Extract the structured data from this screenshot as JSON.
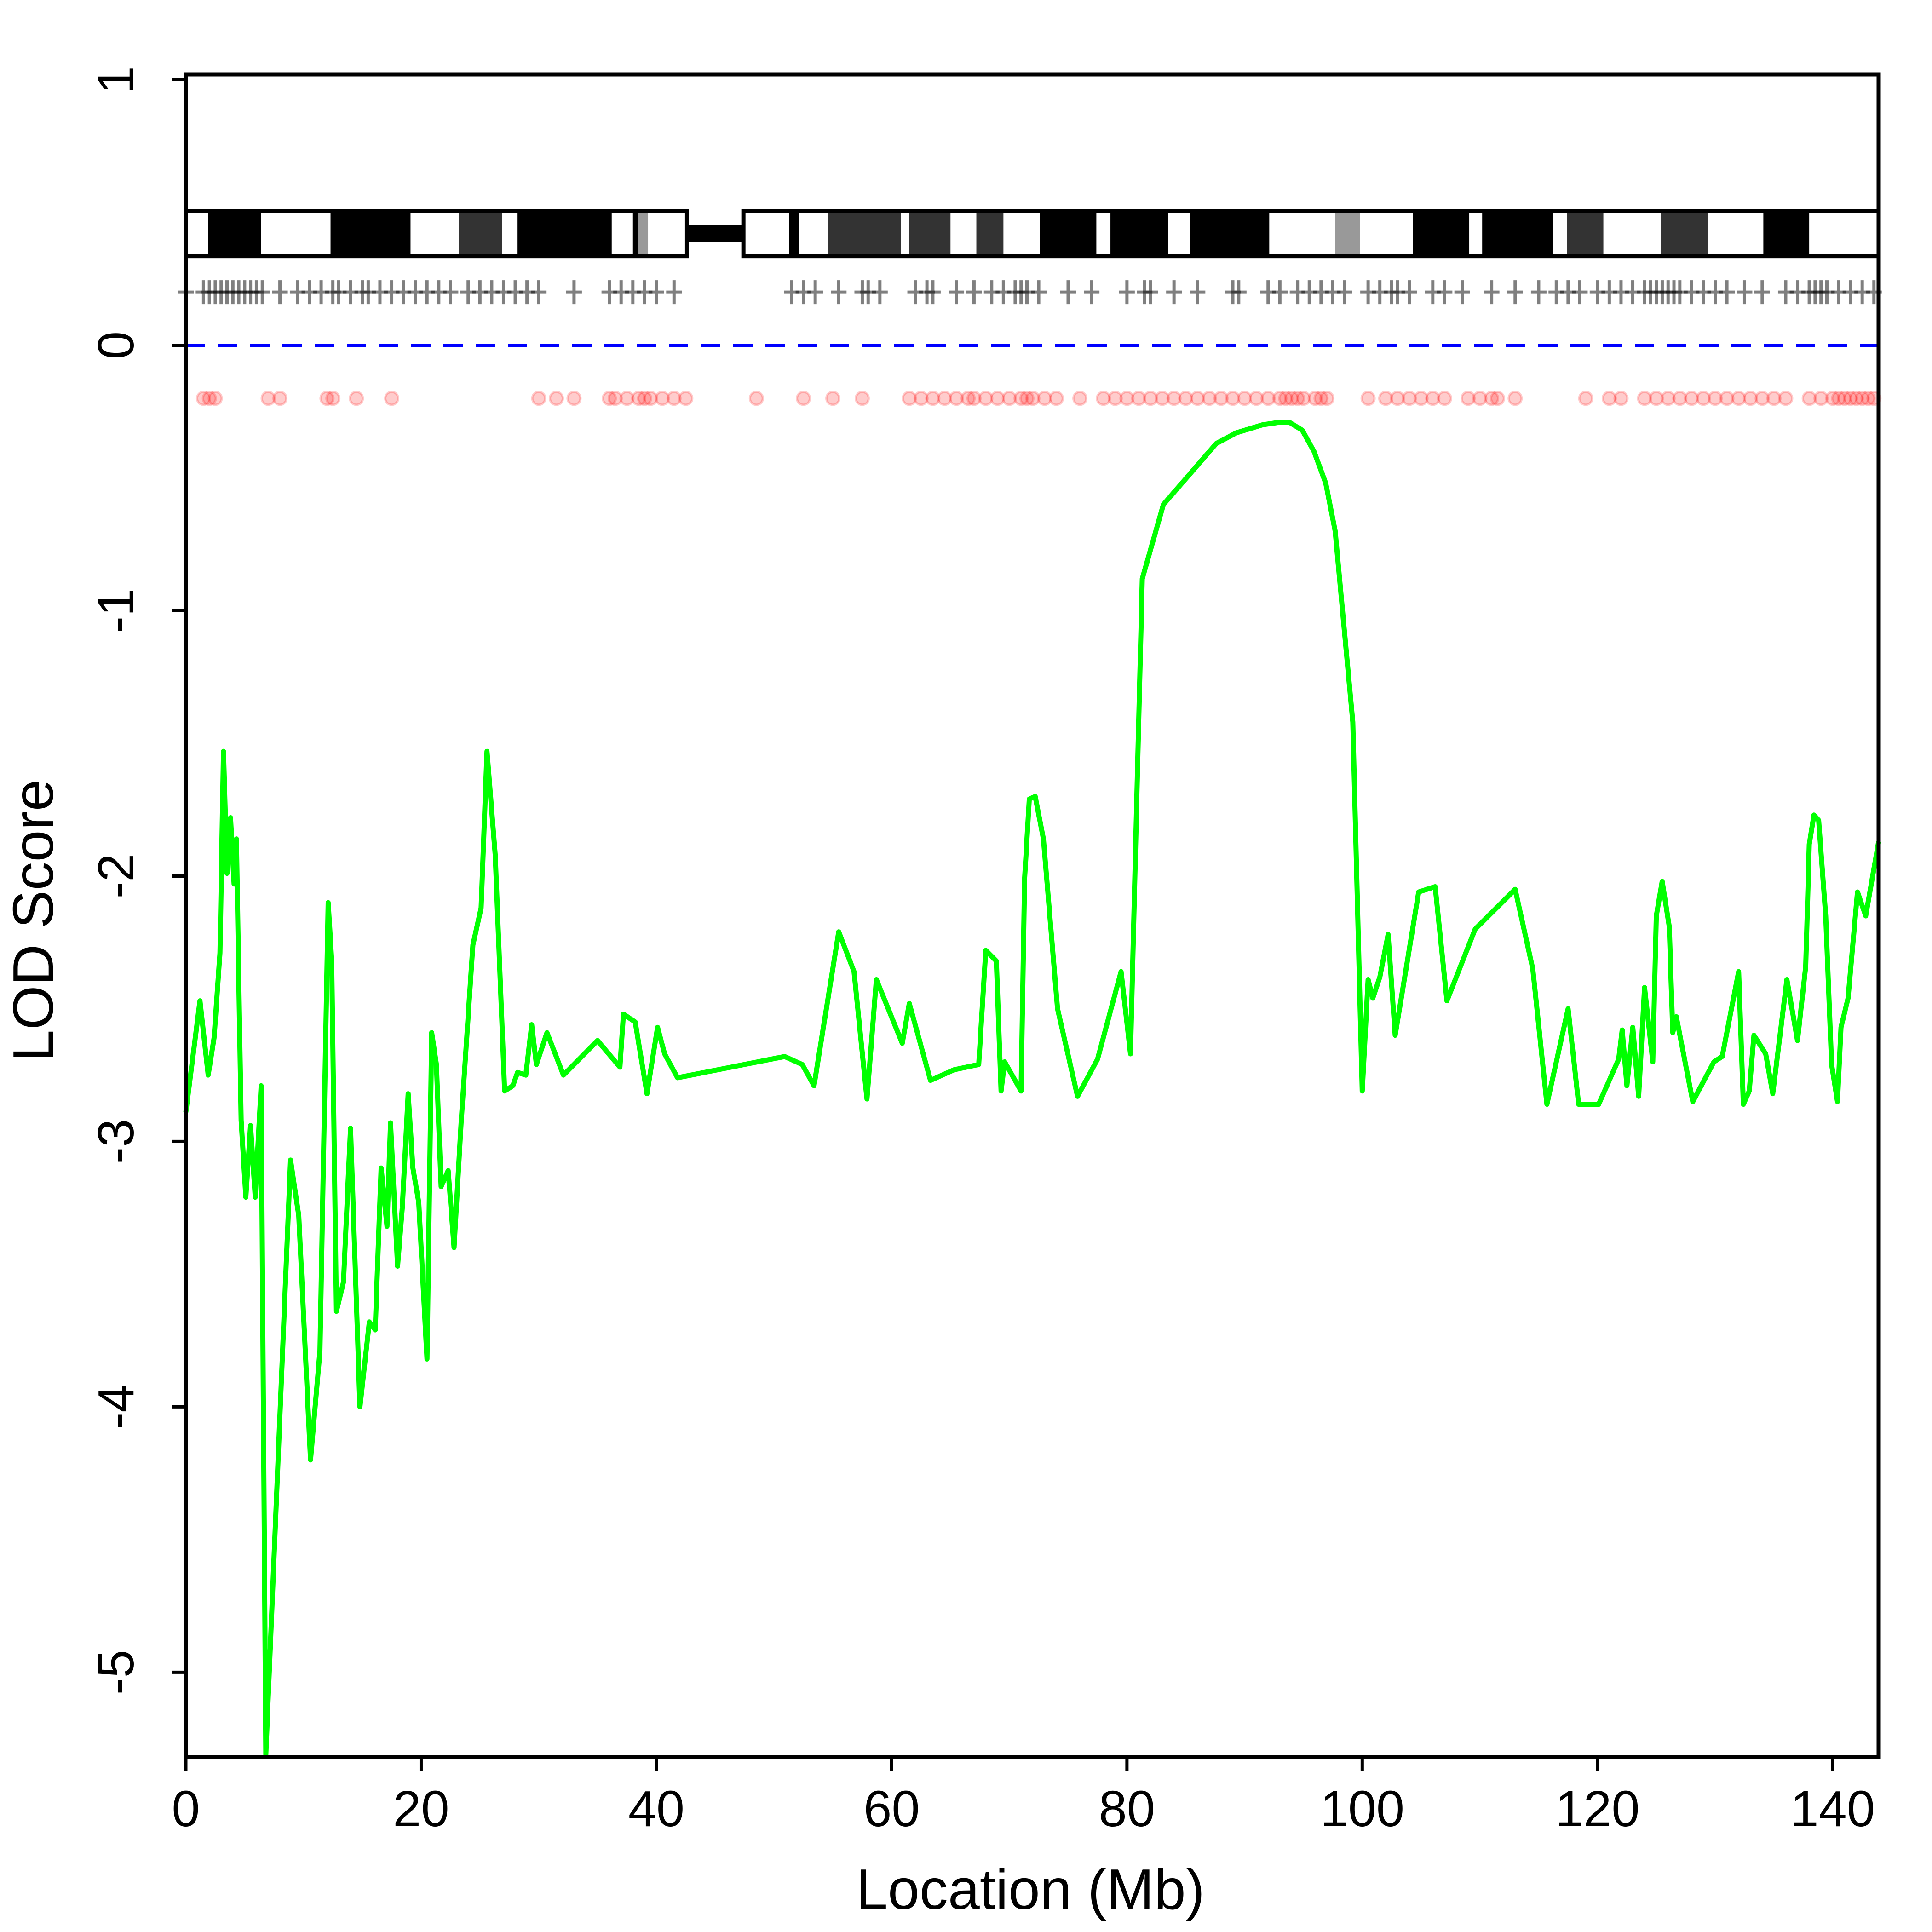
{
  "chart_data": {
    "type": "line",
    "xlabel": "Location (Mb)",
    "ylabel": "LOD Score",
    "color": "#00ff00",
    "xlim": [
      0,
      143.9
    ],
    "ylim": [
      -5.32,
      1.02
    ],
    "xticks": [
      0,
      20,
      40,
      60,
      80,
      100,
      120,
      140
    ],
    "yticks": [
      -5,
      -4,
      -3,
      -2,
      -1,
      0,
      1
    ],
    "reference_line": {
      "value": 0,
      "color": "#0000ff"
    },
    "x": [
      0,
      1.2,
      1.9,
      2.4,
      2.9,
      3.2,
      3.5,
      3.8,
      4.1,
      4.3,
      4.7,
      5.1,
      5.5,
      5.9,
      6.4,
      6.8,
      8.9,
      9.6,
      10.6,
      11.4,
      12.1,
      12.4,
      12.8,
      13.4,
      14.0,
      14.8,
      15.6,
      16.1,
      16.6,
      17.1,
      17.4,
      18.0,
      18.4,
      18.9,
      19.3,
      19.8,
      20.5,
      20.9,
      21.3,
      21.7,
      22.3,
      22.8,
      23.4,
      24.4,
      25.1,
      25.6,
      26.3,
      27.1,
      27.8,
      28.2,
      28.9,
      29.4,
      29.8,
      30.7,
      32.1,
      35.0,
      36.9,
      37.2,
      38.2,
      39.2,
      40.1,
      40.7,
      41.8,
      50.9,
      52.4,
      53.4,
      55.5,
      56.8,
      57.9,
      58.7,
      60.9,
      61.5,
      63.3,
      65.3,
      67.4,
      68.0,
      68.9,
      69.3,
      69.6,
      71.0,
      71.3,
      71.7,
      72.2,
      72.9,
      74.1,
      75.8,
      77.5,
      79.5,
      80.3,
      81.3,
      83.1,
      87.6,
      89.3,
      91.5,
      93.0,
      93.8,
      94.9,
      95.9,
      96.9,
      97.7,
      99.2,
      100.0,
      100.5,
      100.9,
      101.5,
      102.2,
      102.8,
      104.8,
      106.2,
      107.2,
      109.6,
      113.0,
      114.5,
      115.7,
      117.5,
      118.4,
      120.1,
      121.8,
      122.1,
      122.5,
      123.0,
      123.5,
      124.0,
      124.7,
      125.0,
      125.5,
      126.1,
      126.4,
      126.7,
      128.1,
      129.9,
      130.6,
      132.0,
      132.4,
      132.9,
      133.3,
      134.3,
      134.9,
      136.1,
      137.0,
      137.7,
      138.0,
      138.4,
      138.8,
      139.4,
      139.9,
      140.4,
      140.7,
      141.3,
      142.1,
      142.8,
      143.9
    ],
    "values": [
      -2.89,
      -2.47,
      -2.75,
      -2.61,
      -2.29,
      -1.53,
      -1.99,
      -1.78,
      -2.03,
      -1.86,
      -2.92,
      -3.21,
      -2.94,
      -3.21,
      -2.79,
      -5.31,
      -3.07,
      -3.28,
      -4.2,
      -3.79,
      -2.1,
      -2.32,
      -3.64,
      -3.53,
      -2.95,
      -4.0,
      -3.68,
      -3.71,
      -3.1,
      -3.32,
      -2.93,
      -3.47,
      -3.25,
      -2.82,
      -3.1,
      -3.23,
      -3.82,
      -2.59,
      -2.71,
      -3.17,
      -3.11,
      -3.4,
      -2.93,
      -2.26,
      -2.12,
      -1.53,
      -1.92,
      -2.81,
      -2.79,
      -2.74,
      -2.75,
      -2.56,
      -2.71,
      -2.59,
      -2.75,
      -2.62,
      -2.72,
      -2.52,
      -2.55,
      -2.82,
      -2.57,
      -2.67,
      -2.76,
      -2.68,
      -2.71,
      -2.79,
      -2.21,
      -2.36,
      -2.84,
      -2.39,
      -2.63,
      -2.48,
      -2.77,
      -2.73,
      -2.71,
      -2.28,
      -2.32,
      -2.81,
      -2.7,
      -2.81,
      -2.01,
      -1.71,
      -1.7,
      -1.86,
      -2.5,
      -2.83,
      -2.69,
      -2.36,
      -2.67,
      -0.88,
      -0.6,
      -0.37,
      -0.33,
      -0.3,
      -0.29,
      -0.29,
      -0.32,
      -0.4,
      -0.52,
      -0.7,
      -1.42,
      -2.81,
      -2.39,
      -2.46,
      -2.38,
      -2.22,
      -2.6,
      -2.06,
      -2.04,
      -2.47,
      -2.2,
      -2.05,
      -2.35,
      -2.86,
      -2.5,
      -2.86,
      -2.86,
      -2.69,
      -2.58,
      -2.79,
      -2.57,
      -2.83,
      -2.42,
      -2.7,
      -2.15,
      -2.02,
      -2.19,
      -2.59,
      -2.53,
      -2.85,
      -2.7,
      -2.68,
      -2.36,
      -2.86,
      -2.81,
      -2.6,
      -2.67,
      -2.82,
      -2.39,
      -2.62,
      -2.34,
      -1.88,
      -1.77,
      -1.79,
      -2.15,
      -2.71,
      -2.85,
      -2.57,
      -2.46,
      -2.06,
      -2.15,
      -1.87
    ],
    "ideogram": {
      "ylim": [
        0.336,
        0.505
      ],
      "arms": [
        [
          0,
          42.6
        ],
        [
          47.4,
          143.9
        ]
      ],
      "bands": [
        [
          1.9,
          6.4,
          "#000000"
        ],
        [
          12.3,
          19.1,
          "#000000"
        ],
        [
          23.2,
          26.9,
          "#333333"
        ],
        [
          28.2,
          36.2,
          "#000000"
        ],
        [
          38.0,
          38.4,
          "#000000"
        ],
        [
          38.4,
          39.3,
          "#999999"
        ],
        [
          51.3,
          52.1,
          "#000000"
        ],
        [
          54.6,
          60.8,
          "#333333"
        ],
        [
          61.5,
          65.0,
          "#333333"
        ],
        [
          67.2,
          69.5,
          "#333333"
        ],
        [
          72.6,
          77.4,
          "#000000"
        ],
        [
          78.6,
          83.5,
          "#000000"
        ],
        [
          85.4,
          92.1,
          "#000000"
        ],
        [
          97.7,
          99.8,
          "#999999"
        ],
        [
          104.3,
          109.1,
          "#000000"
        ],
        [
          110.2,
          116.2,
          "#000000"
        ],
        [
          117.4,
          120.5,
          "#333333"
        ],
        [
          125.4,
          129.4,
          "#333333"
        ],
        [
          134.1,
          138.0,
          "#000000"
        ]
      ]
    },
    "markers": {
      "y": 0.2,
      "x": [
        0,
        1.5,
        2,
        2.5,
        3,
        3.5,
        4,
        4.5,
        5,
        5.5,
        6,
        6.5,
        8,
        9.5,
        10.5,
        11.5,
        12.5,
        13,
        14,
        15,
        15.5,
        16.5,
        17.5,
        18.5,
        19.5,
        20.5,
        21.5,
        22.5,
        24,
        25,
        26,
        27,
        28,
        29,
        30,
        33,
        36,
        37,
        38,
        39,
        40,
        41.5,
        51.5,
        52.5,
        53.5,
        55.5,
        57.5,
        58,
        59,
        62,
        63,
        63.5,
        65.5,
        67,
        68.5,
        69.5,
        70.5,
        71,
        71.5,
        72.5,
        75,
        77,
        80,
        81.5,
        82,
        84,
        86,
        89,
        89.5,
        92,
        93,
        94.5,
        95.5,
        96.5,
        97.5,
        98.5,
        100.5,
        101.5,
        102.5,
        103,
        104,
        106,
        107,
        108.5,
        111,
        113,
        115,
        116.5,
        117.5,
        118.5,
        120,
        121,
        122,
        123,
        124,
        124.5,
        125,
        125.5,
        126,
        126.5,
        127,
        128,
        129,
        130,
        131,
        132.5,
        134,
        136,
        137,
        138,
        138.5,
        139,
        139.5,
        140.5,
        141.5,
        142.5,
        143.5
      ]
    },
    "snps": {
      "y": -0.2,
      "color": "#ff0000",
      "x": [
        1.5,
        2,
        2.5,
        7,
        8,
        12,
        12.5,
        14.5,
        17.5,
        30,
        31.5,
        33,
        36,
        36.5,
        37.5,
        38.5,
        39,
        39.5,
        40.5,
        41.5,
        42.5,
        48.5,
        52.5,
        55,
        57.5,
        61.5,
        62.5,
        63.5,
        64.5,
        65.5,
        66.5,
        67,
        68,
        69,
        70,
        71,
        71.5,
        72,
        73,
        74,
        76,
        78,
        79,
        80,
        81,
        82,
        83,
        84,
        85,
        86,
        87,
        88,
        89,
        90,
        91,
        92,
        93,
        93.5,
        94,
        94.5,
        95,
        96,
        96.5,
        97,
        100.5,
        102,
        103,
        104,
        105,
        106,
        107,
        109,
        110,
        111,
        111.5,
        113,
        119,
        121,
        122,
        124,
        125,
        126,
        127,
        128,
        129,
        130,
        131,
        132,
        133,
        134,
        135,
        136,
        138,
        139,
        140,
        140.5,
        141,
        141.5,
        142,
        142.5,
        143,
        143.5
      ]
    }
  }
}
